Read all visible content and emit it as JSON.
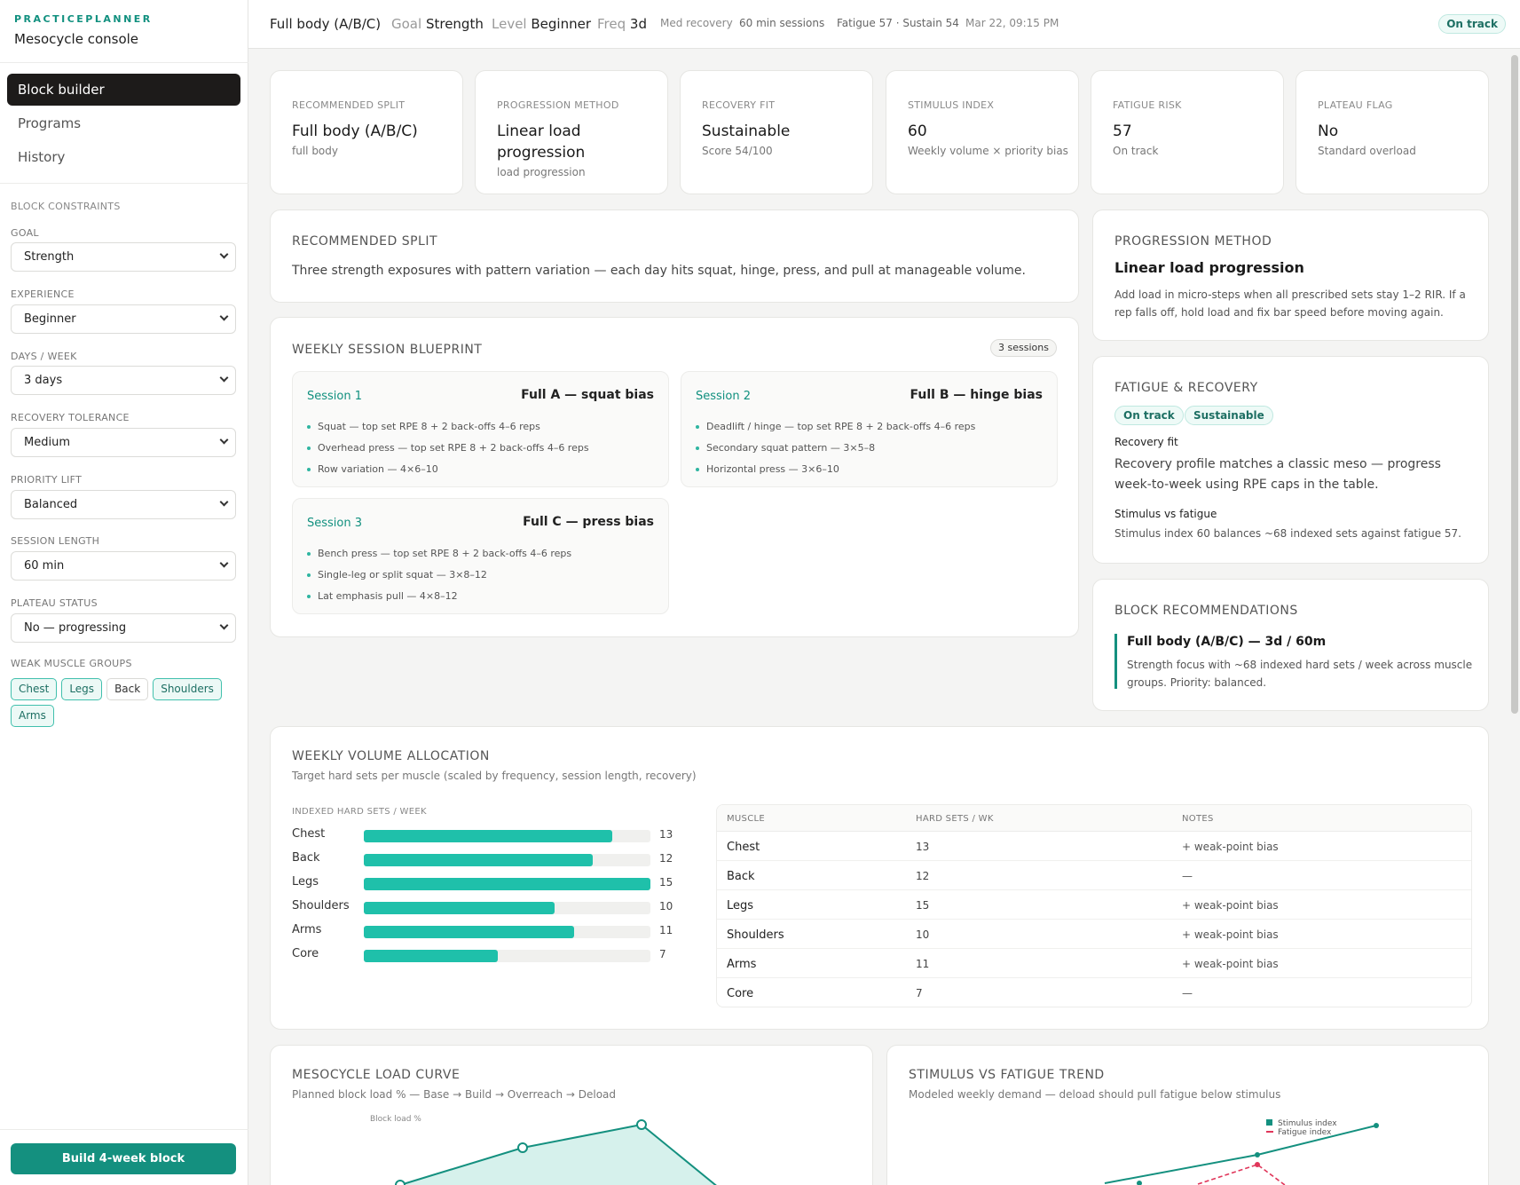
{
  "brand": {
    "top": "PRACTICEPLANNER",
    "sub": "Mesocycle console"
  },
  "nav": [
    {
      "label": "Block builder",
      "active": true
    },
    {
      "label": "Programs",
      "active": false
    },
    {
      "label": "History",
      "active": false
    }
  ],
  "constraints": {
    "title": "BLOCK CONSTRAINTS",
    "fields": [
      {
        "label": "GOAL",
        "value": "Strength"
      },
      {
        "label": "EXPERIENCE",
        "value": "Beginner"
      },
      {
        "label": "DAYS / WEEK",
        "value": "3 days"
      },
      {
        "label": "RECOVERY TOLERANCE",
        "value": "Medium"
      },
      {
        "label": "PRIORITY LIFT",
        "value": "Balanced"
      },
      {
        "label": "SESSION LENGTH",
        "value": "60 min"
      },
      {
        "label": "PLATEAU STATUS",
        "value": "No — progressing"
      }
    ],
    "weak_label": "WEAK MUSCLE GROUPS",
    "weak_groups": [
      {
        "label": "Chest",
        "on": true
      },
      {
        "label": "Legs",
        "on": true
      },
      {
        "label": "Back",
        "on": false
      },
      {
        "label": "Shoulders",
        "on": true
      },
      {
        "label": "Arms",
        "on": true
      }
    ],
    "build_button": "Build 4-week block"
  },
  "header": {
    "split": "Full body (A/B/C)",
    "goal_label": "Goal",
    "goal": "Strength",
    "level_label": "Level",
    "level": "Beginner",
    "freq_label": "Freq",
    "freq": "3d",
    "recovery": "Med recovery",
    "sessions": "60 min sessions",
    "fatigue": "Fatigue 57 · Sustain 54",
    "timestamp": "Mar 22, 09:15 PM",
    "status": "On track"
  },
  "kpis": [
    {
      "label": "RECOMMENDED SPLIT",
      "value": "Full body (A/B/C)",
      "sub": "full body"
    },
    {
      "label": "PROGRESSION METHOD",
      "value": "Linear load progression",
      "sub": "load progression"
    },
    {
      "label": "RECOVERY FIT",
      "value": "Sustainable",
      "sub": "Score 54/100"
    },
    {
      "label": "STIMULUS INDEX",
      "value": "60",
      "sub": "Weekly volume × priority bias"
    },
    {
      "label": "FATIGUE RISK",
      "value": "57",
      "sub": "On track"
    },
    {
      "label": "PLATEAU FLAG",
      "value": "No",
      "sub": "Standard overload"
    }
  ],
  "split_card": {
    "title": "RECOMMENDED SPLIT",
    "text": "Three strength exposures with pattern variation — each day hits squat, hinge, press, and pull at manageable volume."
  },
  "blueprint": {
    "title": "WEEKLY SESSION BLUEPRINT",
    "count": "3 sessions",
    "sessions": [
      {
        "name": "Session 1",
        "title": "Full A — squat bias",
        "items": [
          "Squat — top set RPE 8 + 2 back-offs 4–6 reps",
          "Overhead press — top set RPE 8 + 2 back-offs 4–6 reps",
          "Row variation — 4×6–10"
        ]
      },
      {
        "name": "Session 2",
        "title": "Full B — hinge bias",
        "items": [
          "Deadlift / hinge — top set RPE 8 + 2 back-offs 4–6 reps",
          "Secondary squat pattern — 3×5–8",
          "Horizontal press — 3×6–10"
        ]
      },
      {
        "name": "Session 3",
        "title": "Full C — press bias",
        "items": [
          "Bench press — top set RPE 8 + 2 back-offs 4–6 reps",
          "Single-leg or split squat — 3×8–12",
          "Lat emphasis pull — 4×8–12"
        ]
      }
    ]
  },
  "progression": {
    "title": "PROGRESSION METHOD",
    "headline": "Linear load progression",
    "text": "Add load in micro-steps when all prescribed sets stay 1–2 RIR. If a rep falls off, hold load and fix bar speed before moving again."
  },
  "fatigue": {
    "title": "FATIGUE & RECOVERY",
    "badges": [
      "On track",
      "Sustainable"
    ],
    "fit_label": "Recovery fit",
    "fit_text": "Recovery profile matches a classic meso — progress week-to-week using RPE caps in the table.",
    "svf_label": "Stimulus vs fatigue",
    "svf_text": "Stimulus index 60 balances ~68 indexed sets against fatigue 57."
  },
  "recommendations": {
    "title": "BLOCK RECOMMENDATIONS",
    "headline": "Full body (A/B/C) — 3d / 60m",
    "text": "Strength focus with ~68 indexed hard sets / week across muscle groups. Priority: balanced."
  },
  "volume": {
    "title": "WEEKLY VOLUME ALLOCATION",
    "subtitle": "Target hard sets per muscle (scaled by frequency, session length, recovery)",
    "bars_label": "INDEXED HARD SETS / WEEK",
    "max": 15,
    "table_headers": [
      "MUSCLE",
      "HARD SETS / WK",
      "NOTES"
    ],
    "rows": [
      {
        "muscle": "Chest",
        "sets": 13,
        "note": "+ weak-point bias"
      },
      {
        "muscle": "Back",
        "sets": 12,
        "note": "—"
      },
      {
        "muscle": "Legs",
        "sets": 15,
        "note": "+ weak-point bias"
      },
      {
        "muscle": "Shoulders",
        "sets": 10,
        "note": "+ weak-point bias"
      },
      {
        "muscle": "Arms",
        "sets": 11,
        "note": "+ weak-point bias"
      },
      {
        "muscle": "Core",
        "sets": 7,
        "note": "—"
      }
    ]
  },
  "load_curve": {
    "title": "MESOCYCLE LOAD CURVE",
    "subtitle": "Planned block load % — Base → Build → Overreach → Deload",
    "series_label": "Block load %"
  },
  "trend": {
    "title": "STIMULUS VS FATIGUE TREND",
    "subtitle": "Modeled weekly demand — deload should pull fatigue below stimulus",
    "legend": [
      "Stimulus index",
      "Fatigue index"
    ]
  },
  "colors": {
    "accent": "#14907f",
    "bar": "#1fc0aa",
    "fatigue": "#e0365a",
    "dark": "#1d1b1a"
  }
}
